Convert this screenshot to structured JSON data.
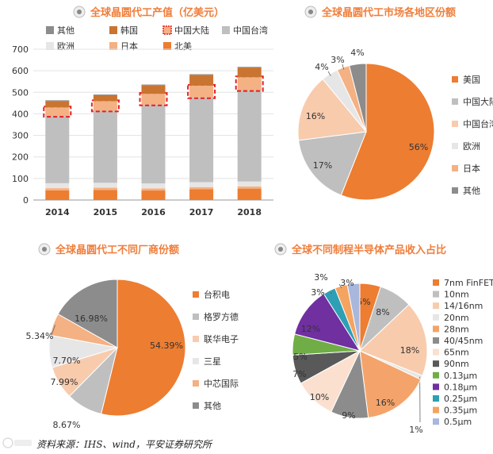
{
  "colors": {
    "title": "#f07d3a",
    "us": "#ed7d31",
    "mainland": "#bfbfbf",
    "taiwan": "#f8cbad",
    "europe": "#e7e6e6",
    "japan": "#f4b183",
    "other": "#8c8c8c",
    "korea": "#c97431",
    "highlight": "#e81e1e"
  },
  "source": "资料来源：IHS、wind，平安证券研究所",
  "chart_data": [
    {
      "type": "bar",
      "stacked": true,
      "title": "全球晶圆代工产值（亿美元）",
      "categories": [
        "2014",
        "2015",
        "2016",
        "2017",
        "2018"
      ],
      "ylim": [
        0,
        700
      ],
      "yticks": [
        0,
        100,
        200,
        300,
        400,
        500,
        600,
        700
      ],
      "legend": [
        "其他",
        "韩国",
        "中国大陆",
        "中国台湾",
        "欧洲",
        "日本",
        "北美"
      ],
      "series": [
        {
          "name": "北美",
          "color": "#ed7d31",
          "values": [
            45,
            47,
            44,
            50,
            53
          ]
        },
        {
          "name": "日本",
          "color": "#f4b183",
          "values": [
            10,
            10,
            10,
            10,
            10
          ]
        },
        {
          "name": "欧洲",
          "color": "#e7e6e6",
          "values": [
            23,
            23,
            23,
            23,
            23
          ]
        },
        {
          "name": "中国台湾",
          "color": "#bfbfbf",
          "values": [
            312,
            335,
            366,
            393,
            424
          ]
        },
        {
          "name": "中国大陆",
          "color": "#f4b183",
          "values": [
            40,
            44,
            50,
            55,
            60
          ],
          "highlighted": true
        },
        {
          "name": "韩国",
          "color": "#c97431",
          "values": [
            30,
            28,
            40,
            50,
            45
          ]
        },
        {
          "name": "其他",
          "color": "#8c8c8c",
          "values": [
            3,
            3,
            3,
            3,
            3
          ]
        }
      ]
    },
    {
      "type": "pie",
      "title": "全球晶圆代工市场各地区份额",
      "slices": [
        {
          "name": "美国",
          "value": 56,
          "label": "56%",
          "color": "#ed7d31"
        },
        {
          "name": "中国大陆",
          "value": 17,
          "label": "17%",
          "color": "#bfbfbf"
        },
        {
          "name": "中国台湾",
          "value": 16,
          "label": "16%",
          "color": "#f8cbad"
        },
        {
          "name": "欧洲",
          "value": 4,
          "label": "4%",
          "color": "#e7e6e6"
        },
        {
          "name": "日本",
          "value": 3,
          "label": "3%",
          "color": "#f4b183"
        },
        {
          "name": "其他",
          "value": 4,
          "label": "4%",
          "color": "#8c8c8c"
        }
      ]
    },
    {
      "type": "pie",
      "title": "全球晶圆代工不同厂商份额",
      "slices": [
        {
          "name": "台积电",
          "value": 54.39,
          "label": "54.39%",
          "color": "#ed7d31"
        },
        {
          "name": "格罗方德",
          "value": 8.67,
          "label": "8.67%",
          "color": "#bfbfbf"
        },
        {
          "name": "联华电子",
          "value": 7.99,
          "label": "7.99%",
          "color": "#f8cbad"
        },
        {
          "name": "三星",
          "value": 7.7,
          "label": "7.70%",
          "color": "#e7e6e6"
        },
        {
          "name": "中芯国际",
          "value": 5.34,
          "label": "5.34%",
          "color": "#f4b183"
        },
        {
          "name": "其他",
          "value": 16.98,
          "label": "16.98%",
          "color": "#8c8c8c"
        }
      ]
    },
    {
      "type": "pie",
      "title": "全球不同制程半导体产品收入占比",
      "slices": [
        {
          "name": "7nm FinFET",
          "value": 5,
          "label": "5%",
          "color": "#ed7d31"
        },
        {
          "name": "10nm",
          "value": 8,
          "label": "8%",
          "color": "#bfbfbf"
        },
        {
          "name": "14/16nm",
          "value": 18,
          "label": "18%",
          "color": "#f8cbad"
        },
        {
          "name": "20nm",
          "value": 1,
          "label": "1%",
          "color": "#e7e6e6"
        },
        {
          "name": "28nm",
          "value": 16,
          "label": "16%",
          "color": "#f4a46a"
        },
        {
          "name": "40/45nm",
          "value": 9,
          "label": "9%",
          "color": "#8c8c8c"
        },
        {
          "name": "65nm",
          "value": 10,
          "label": "10%",
          "color": "#fbe0cf"
        },
        {
          "name": "90nm",
          "value": 7,
          "label": "7%",
          "color": "#595959"
        },
        {
          "name": "0.13μm",
          "value": 5,
          "label": "5%",
          "color": "#70ad47"
        },
        {
          "name": "0.18μm",
          "value": 12,
          "label": "12%",
          "color": "#7030a0"
        },
        {
          "name": "0.25μm",
          "value": 3,
          "label": "3%",
          "color": "#2e9fb5"
        },
        {
          "name": "0.35μm",
          "value": 3,
          "label": "3%",
          "color": "#f4a460"
        },
        {
          "name": "0.5μm",
          "value": 3,
          "label": "3%",
          "color": "#a9b7dd"
        }
      ]
    }
  ]
}
